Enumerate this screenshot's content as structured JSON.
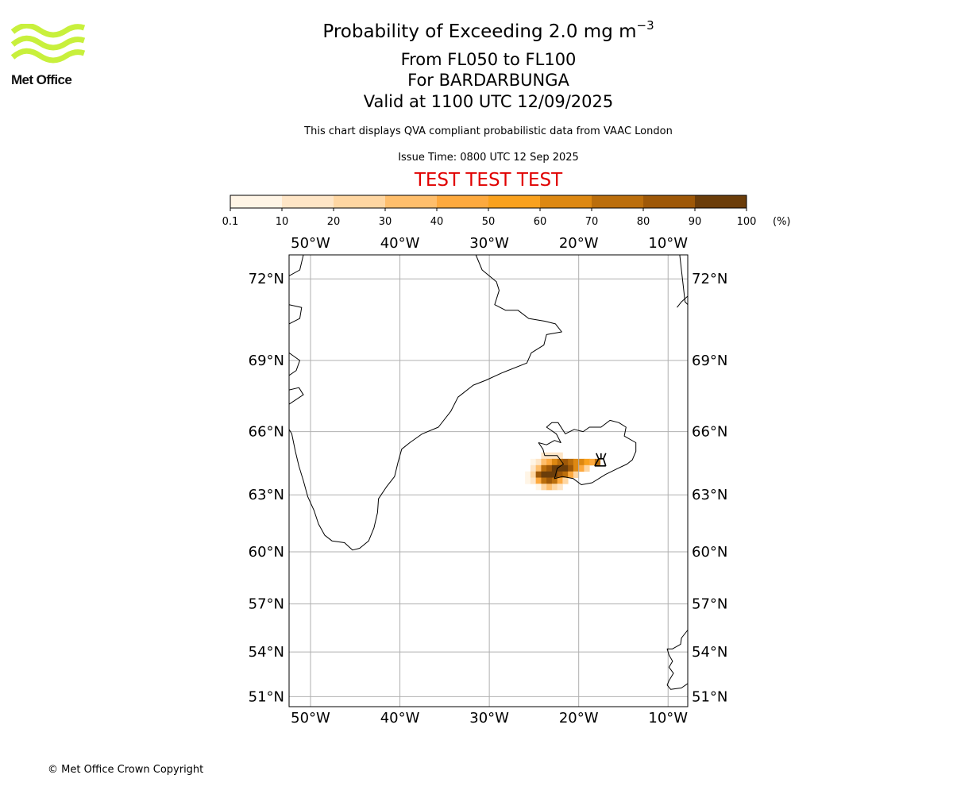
{
  "header": {
    "title_main": "Probability of Exceeding 2.0 mg m",
    "title_exponent": "−3",
    "subtitle_levels": "From FL050 to FL100",
    "subtitle_volcano": "For BARDARBUNGA",
    "subtitle_valid": "Valid at 1100 UTC 12/09/2025",
    "note": "This chart displays QVA compliant probabilistic data from VAAC London",
    "issue_time": "Issue Time: 0800 UTC 12 Sep 2025",
    "test_banner": "TEST TEST TEST"
  },
  "logo": {
    "text": "Met Office",
    "color": "#c8f03c"
  },
  "colorbar": {
    "unit": "(%)",
    "ticks": [
      "0.1",
      "10",
      "20",
      "30",
      "40",
      "50",
      "60",
      "70",
      "80",
      "90",
      "100"
    ],
    "colors": [
      "#fff5e6",
      "#fee5c6",
      "#fed6a2",
      "#febe6c",
      "#fda93e",
      "#f9a11e",
      "#dd8812",
      "#bb6e0c",
      "#9e5808",
      "#6b3d0a"
    ]
  },
  "map": {
    "top_lon_labels": [
      "50°W",
      "40°W",
      "30°W",
      "20°W",
      "10°W"
    ],
    "bottom_lon_labels": [
      "50°W",
      "40°W",
      "30°W",
      "20°W",
      "10°W"
    ],
    "left_lat_labels": [
      "72°N",
      "69°N",
      "66°N",
      "63°N",
      "60°N",
      "57°N",
      "54°N",
      "51°N"
    ],
    "right_lat_labels": [
      "72°N",
      "69°N",
      "66°N",
      "63°N",
      "60°N",
      "57°N",
      "54°N",
      "51°N"
    ],
    "lon_values": [
      -50,
      -40,
      -30,
      -20,
      -10
    ],
    "lat_values": [
      72,
      69,
      66,
      63,
      60,
      57,
      54,
      51
    ],
    "extent": {
      "lon_min": -52.4,
      "lon_max": -7.8,
      "lat_min": 50.3,
      "lat_max": 72.8
    },
    "grid": true,
    "gridline_color": "#b0b0b0",
    "volcano_marker_lon": -17.5,
    "volcano_marker_lat": 64.6,
    "ash_cells": [
      {
        "lon": -23.9,
        "lat": 64.9,
        "p": 12
      },
      {
        "lon": -23.3,
        "lat": 64.9,
        "p": 15
      },
      {
        "lon": -22.7,
        "lat": 64.9,
        "p": 15
      },
      {
        "lon": -22.1,
        "lat": 64.9,
        "p": 12
      },
      {
        "lon": -25.1,
        "lat": 64.6,
        "p": 8
      },
      {
        "lon": -24.5,
        "lat": 64.6,
        "p": 18
      },
      {
        "lon": -23.9,
        "lat": 64.6,
        "p": 30
      },
      {
        "lon": -23.3,
        "lat": 64.6,
        "p": 45
      },
      {
        "lon": -22.7,
        "lat": 64.6,
        "p": 60
      },
      {
        "lon": -22.1,
        "lat": 64.6,
        "p": 72
      },
      {
        "lon": -21.5,
        "lat": 64.6,
        "p": 82
      },
      {
        "lon": -20.9,
        "lat": 64.6,
        "p": 75
      },
      {
        "lon": -20.3,
        "lat": 64.6,
        "p": 68
      },
      {
        "lon": -19.7,
        "lat": 64.6,
        "p": 60
      },
      {
        "lon": -19.1,
        "lat": 64.6,
        "p": 55
      },
      {
        "lon": -18.5,
        "lat": 64.6,
        "p": 40
      },
      {
        "lon": -17.9,
        "lat": 64.6,
        "p": 70
      },
      {
        "lon": -25.1,
        "lat": 64.3,
        "p": 10
      },
      {
        "lon": -24.5,
        "lat": 64.3,
        "p": 35
      },
      {
        "lon": -23.9,
        "lat": 64.3,
        "p": 75
      },
      {
        "lon": -23.3,
        "lat": 64.3,
        "p": 88
      },
      {
        "lon": -22.7,
        "lat": 64.3,
        "p": 92
      },
      {
        "lon": -22.1,
        "lat": 64.3,
        "p": 95
      },
      {
        "lon": -21.5,
        "lat": 64.3,
        "p": 90
      },
      {
        "lon": -20.9,
        "lat": 64.3,
        "p": 80
      },
      {
        "lon": -20.3,
        "lat": 64.3,
        "p": 65
      },
      {
        "lon": -19.7,
        "lat": 64.3,
        "p": 45
      },
      {
        "lon": -19.1,
        "lat": 64.3,
        "p": 25
      },
      {
        "lon": -25.7,
        "lat": 64.0,
        "p": 6
      },
      {
        "lon": -25.1,
        "lat": 64.0,
        "p": 22
      },
      {
        "lon": -24.5,
        "lat": 64.0,
        "p": 80
      },
      {
        "lon": -23.9,
        "lat": 64.0,
        "p": 94
      },
      {
        "lon": -23.3,
        "lat": 64.0,
        "p": 97
      },
      {
        "lon": -22.7,
        "lat": 64.0,
        "p": 95
      },
      {
        "lon": -22.1,
        "lat": 64.0,
        "p": 88
      },
      {
        "lon": -21.5,
        "lat": 64.0,
        "p": 70
      },
      {
        "lon": -20.9,
        "lat": 64.0,
        "p": 45
      },
      {
        "lon": -20.3,
        "lat": 64.0,
        "p": 20
      },
      {
        "lon": -25.7,
        "lat": 63.7,
        "p": 5
      },
      {
        "lon": -25.1,
        "lat": 63.7,
        "p": 15
      },
      {
        "lon": -24.5,
        "lat": 63.7,
        "p": 40
      },
      {
        "lon": -23.9,
        "lat": 63.7,
        "p": 72
      },
      {
        "lon": -23.3,
        "lat": 63.7,
        "p": 80
      },
      {
        "lon": -22.7,
        "lat": 63.7,
        "p": 70
      },
      {
        "lon": -22.1,
        "lat": 63.7,
        "p": 45
      },
      {
        "lon": -21.5,
        "lat": 63.7,
        "p": 20
      },
      {
        "lon": -24.5,
        "lat": 63.4,
        "p": 8
      },
      {
        "lon": -23.9,
        "lat": 63.4,
        "p": 22
      },
      {
        "lon": -23.3,
        "lat": 63.4,
        "p": 30
      },
      {
        "lon": -22.7,
        "lat": 63.4,
        "p": 25
      },
      {
        "lon": -22.1,
        "lat": 63.4,
        "p": 10
      }
    ],
    "coastlines": [
      [
        [
          -31.5,
          72.8
        ],
        [
          -30.8,
          72.3
        ],
        [
          -29.2,
          71.9
        ],
        [
          -28.9,
          71.6
        ],
        [
          -29.4,
          71.1
        ],
        [
          -28.2,
          70.9
        ],
        [
          -26.8,
          70.9
        ],
        [
          -25.6,
          70.6
        ],
        [
          -23.8,
          70.5
        ],
        [
          -22.6,
          70.4
        ],
        [
          -21.9,
          70.1
        ],
        [
          -23.6,
          70.0
        ],
        [
          -23.9,
          69.6
        ],
        [
          -25.3,
          69.3
        ],
        [
          -25.8,
          68.9
        ],
        [
          -28.6,
          68.5
        ],
        [
          -30.4,
          68.2
        ],
        [
          -31.8,
          68.0
        ],
        [
          -33.5,
          67.5
        ],
        [
          -34.3,
          66.9
        ],
        [
          -35.7,
          66.2
        ],
        [
          -37.5,
          65.9
        ],
        [
          -38.9,
          65.5
        ],
        [
          -39.8,
          65.2
        ],
        [
          -40.2,
          64.6
        ],
        [
          -40.6,
          63.9
        ],
        [
          -41.5,
          63.4
        ],
        [
          -42.4,
          62.8
        ],
        [
          -42.5,
          62.1
        ],
        [
          -42.9,
          61.3
        ],
        [
          -43.5,
          60.6
        ],
        [
          -44.5,
          60.2
        ],
        [
          -45.3,
          60.1
        ],
        [
          -46.2,
          60.5
        ],
        [
          -47.6,
          60.6
        ],
        [
          -48.4,
          60.9
        ],
        [
          -49.1,
          61.5
        ],
        [
          -49.6,
          62.2
        ],
        [
          -50.3,
          62.9
        ],
        [
          -50.8,
          63.7
        ],
        [
          -51.3,
          64.4
        ],
        [
          -51.7,
          65.1
        ],
        [
          -52.1,
          65.9
        ],
        [
          -52.4,
          66.1
        ]
      ],
      [
        [
          -50.8,
          72.8
        ],
        [
          -51.2,
          72.3
        ],
        [
          -52.4,
          72.1
        ]
      ],
      [
        [
          -52.4,
          71.1
        ],
        [
          -51.0,
          71.0
        ],
        [
          -51.2,
          70.6
        ],
        [
          -52.4,
          70.4
        ]
      ],
      [
        [
          -52.4,
          69.3
        ],
        [
          -51.2,
          69.0
        ],
        [
          -51.6,
          68.6
        ],
        [
          -52.4,
          68.4
        ]
      ],
      [
        [
          -52.4,
          67.8
        ],
        [
          -51.3,
          67.9
        ],
        [
          -50.8,
          67.6
        ],
        [
          -52.4,
          67.2
        ]
      ],
      [
        [
          -8.7,
          72.8
        ],
        [
          -8.1,
          71.2
        ],
        [
          -7.8,
          71.1
        ]
      ],
      [
        [
          -7.8,
          71.4
        ],
        [
          -8.5,
          71.2
        ],
        [
          -9.0,
          71.0
        ]
      ],
      [
        [
          -24.5,
          65.5
        ],
        [
          -23.6,
          65.4
        ],
        [
          -22.7,
          65.6
        ],
        [
          -22.0,
          65.5
        ],
        [
          -22.5,
          65.9
        ],
        [
          -23.6,
          66.2
        ],
        [
          -23.0,
          66.4
        ],
        [
          -22.3,
          66.4
        ],
        [
          -21.5,
          65.9
        ],
        [
          -20.5,
          66.1
        ],
        [
          -19.5,
          66.0
        ],
        [
          -18.8,
          66.2
        ],
        [
          -17.5,
          66.2
        ],
        [
          -16.5,
          66.5
        ],
        [
          -15.5,
          66.4
        ],
        [
          -14.7,
          66.2
        ],
        [
          -14.9,
          65.8
        ],
        [
          -13.6,
          65.5
        ],
        [
          -13.6,
          65.1
        ],
        [
          -14.0,
          64.7
        ],
        [
          -14.6,
          64.5
        ],
        [
          -15.6,
          64.3
        ],
        [
          -17.0,
          64.0
        ],
        [
          -18.5,
          63.6
        ],
        [
          -19.7,
          63.5
        ],
        [
          -20.6,
          63.8
        ],
        [
          -21.8,
          63.9
        ],
        [
          -22.7,
          63.8
        ],
        [
          -22.4,
          64.3
        ],
        [
          -21.7,
          64.5
        ],
        [
          -22.4,
          64.9
        ],
        [
          -23.8,
          64.9
        ],
        [
          -24.0,
          65.2
        ],
        [
          -24.5,
          65.5
        ]
      ],
      [
        [
          -7.8,
          55.4
        ],
        [
          -8.5,
          54.9
        ],
        [
          -8.6,
          54.5
        ],
        [
          -9.5,
          54.2
        ],
        [
          -10.1,
          54.2
        ],
        [
          -9.9,
          53.8
        ],
        [
          -9.5,
          53.4
        ],
        [
          -9.9,
          53.0
        ],
        [
          -9.4,
          52.6
        ],
        [
          -9.9,
          52.1
        ],
        [
          -10.1,
          51.8
        ],
        [
          -9.7,
          51.5
        ],
        [
          -8.5,
          51.6
        ],
        [
          -7.8,
          51.9
        ]
      ]
    ]
  }
}
